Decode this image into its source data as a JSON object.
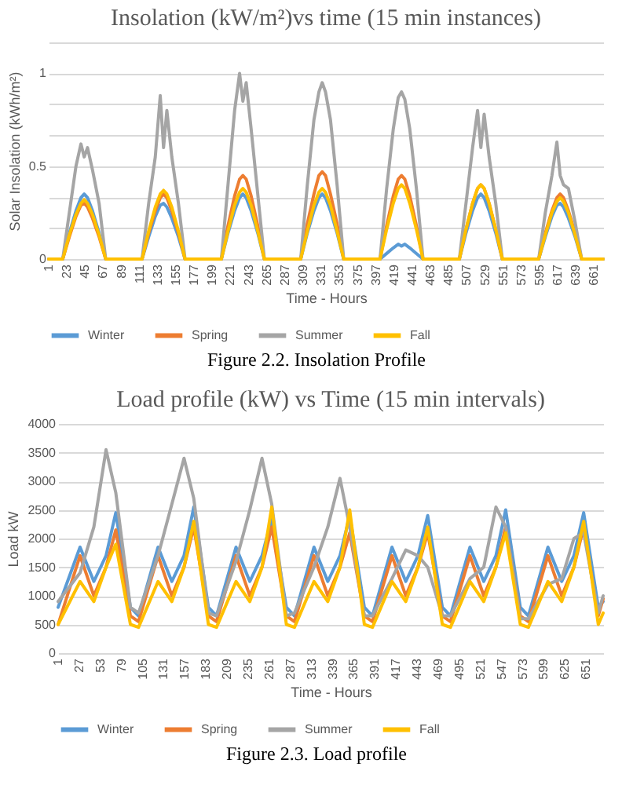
{
  "chart_data": [
    {
      "type": "line",
      "title": "Insolation (kW/m²)vs time (15 min instances)",
      "xlabel": "Time - Hours",
      "ylabel": "Solar Insolation (kWh/m²)",
      "annotations": [
        "Figure 2.2. Insolation Profile"
      ],
      "x": [
        1,
        18,
        26,
        34,
        40,
        44,
        48,
        54,
        62,
        70,
        114,
        122,
        130,
        136,
        140,
        144,
        150,
        158,
        166,
        210,
        218,
        226,
        232,
        236,
        240,
        246,
        254,
        262,
        306,
        314,
        322,
        328,
        332,
        336,
        342,
        350,
        358,
        402,
        410,
        418,
        424,
        428,
        432,
        438,
        446,
        454,
        498,
        506,
        514,
        520,
        524,
        528,
        534,
        542,
        550,
        594,
        602,
        610,
        616,
        620,
        624,
        630,
        638,
        646,
        672
      ],
      "xlim": [
        1,
        672
      ],
      "xticks": [
        1,
        23,
        45,
        67,
        89,
        111,
        133,
        155,
        177,
        199,
        221,
        243,
        265,
        287,
        309,
        331,
        353,
        375,
        397,
        419,
        441,
        463,
        485,
        507,
        529,
        551,
        573,
        595,
        617,
        639,
        661
      ],
      "ylim": [
        0,
        1.1667
      ],
      "yticks": [
        0,
        {
          "value": 0.1667,
          "label": null
        },
        {
          "value": 0.3333,
          "label": null
        },
        0.5,
        {
          "value": 0.6667,
          "label": null
        },
        {
          "value": 0.8333,
          "label": null
        },
        1,
        {
          "value": 1.1667,
          "label": null
        }
      ],
      "grid": "y",
      "legend": "bottom",
      "series": [
        {
          "name": "Winter",
          "color": "#5b9bd5",
          "values": [
            0,
            0,
            0.14,
            0.26,
            0.33,
            0.35,
            0.33,
            0.26,
            0.14,
            0,
            0,
            0.12,
            0.23,
            0.29,
            0.3,
            0.28,
            0.22,
            0.12,
            0,
            0,
            0.14,
            0.26,
            0.33,
            0.35,
            0.33,
            0.26,
            0.14,
            0,
            0,
            0.14,
            0.26,
            0.33,
            0.35,
            0.33,
            0.26,
            0.14,
            0,
            0,
            0.03,
            0.06,
            0.08,
            0.07,
            0.08,
            0.06,
            0.03,
            0,
            0,
            0.14,
            0.26,
            0.33,
            0.35,
            0.33,
            0.26,
            0.14,
            0,
            0,
            0.12,
            0.23,
            0.29,
            0.3,
            0.28,
            0.22,
            0.12,
            0,
            0
          ]
        },
        {
          "name": "Spring",
          "color": "#ed7d31",
          "values": [
            0,
            0,
            0.12,
            0.23,
            0.29,
            0.3,
            0.28,
            0.22,
            0.12,
            0,
            0,
            0.14,
            0.26,
            0.33,
            0.35,
            0.33,
            0.26,
            0.14,
            0,
            0,
            0.18,
            0.34,
            0.43,
            0.45,
            0.43,
            0.34,
            0.18,
            0,
            0,
            0.19,
            0.35,
            0.45,
            0.47,
            0.45,
            0.35,
            0.19,
            0,
            0,
            0.18,
            0.34,
            0.43,
            0.45,
            0.43,
            0.34,
            0.18,
            0,
            0,
            0.16,
            0.3,
            0.38,
            0.4,
            0.38,
            0.3,
            0.16,
            0,
            0,
            0.14,
            0.26,
            0.33,
            0.35,
            0.33,
            0.26,
            0.14,
            0,
            0
          ]
        },
        {
          "name": "Summer",
          "color": "#a5a5a5",
          "values": [
            0,
            0,
            0.25,
            0.5,
            0.62,
            0.55,
            0.6,
            0.48,
            0.3,
            0,
            0,
            0.3,
            0.55,
            0.88,
            0.6,
            0.8,
            0.55,
            0.3,
            0,
            0,
            0.4,
            0.8,
            1.0,
            0.85,
            0.95,
            0.7,
            0.35,
            0,
            0,
            0.4,
            0.75,
            0.9,
            0.95,
            0.9,
            0.75,
            0.4,
            0,
            0,
            0.38,
            0.7,
            0.87,
            0.9,
            0.86,
            0.7,
            0.38,
            0,
            0,
            0.3,
            0.6,
            0.8,
            0.6,
            0.78,
            0.55,
            0.3,
            0,
            0,
            0.25,
            0.45,
            0.63,
            0.45,
            0.4,
            0.38,
            0.2,
            0,
            0
          ]
        },
        {
          "name": "Fall",
          "color": "#ffc000",
          "values": [
            0,
            0,
            0.13,
            0.24,
            0.3,
            0.32,
            0.3,
            0.24,
            0.13,
            0,
            0,
            0.15,
            0.28,
            0.35,
            0.37,
            0.35,
            0.28,
            0.15,
            0,
            0,
            0.15,
            0.29,
            0.36,
            0.38,
            0.36,
            0.29,
            0.15,
            0,
            0,
            0.15,
            0.29,
            0.36,
            0.38,
            0.36,
            0.29,
            0.15,
            0,
            0,
            0.16,
            0.3,
            0.38,
            0.4,
            0.38,
            0.3,
            0.16,
            0,
            0,
            0.16,
            0.3,
            0.38,
            0.4,
            0.38,
            0.3,
            0.16,
            0,
            0,
            0.13,
            0.25,
            0.31,
            0.33,
            0.31,
            0.25,
            0.13,
            0,
            0
          ]
        }
      ]
    },
    {
      "type": "line",
      "title": "Load profile (kW) vs Time (15 min intervals)",
      "xlabel": "Time - Hours",
      "ylabel": "Load kW",
      "annotations": [
        "Figure 2.3. Load profile"
      ],
      "x": [
        1,
        28,
        45,
        60,
        72,
        90,
        100,
        124,
        141,
        156,
        168,
        186,
        196,
        220,
        237,
        252,
        264,
        282,
        292,
        316,
        333,
        348,
        360,
        378,
        388,
        412,
        429,
        444,
        456,
        474,
        484,
        508,
        525,
        540,
        552,
        570,
        580,
        604,
        621,
        636,
        648,
        666,
        672
      ],
      "xlim": [
        1,
        672
      ],
      "xticks": [
        1,
        27,
        53,
        79,
        105,
        131,
        157,
        183,
        209,
        235,
        261,
        287,
        313,
        339,
        365,
        391,
        417,
        443,
        469,
        495,
        521,
        547,
        573,
        599,
        625,
        651
      ],
      "ylim": [
        0,
        4000
      ],
      "yticks": [
        0,
        500,
        1000,
        1500,
        2000,
        2500,
        3000,
        3500,
        4000
      ],
      "grid": "y",
      "legend": "bottom",
      "series": [
        {
          "name": "Winter",
          "color": "#5b9bd5",
          "values": [
            800,
            1850,
            1250,
            1700,
            2450,
            800,
            650,
            1850,
            1250,
            1700,
            2550,
            800,
            650,
            1850,
            1250,
            1700,
            2350,
            800,
            650,
            1850,
            1250,
            1700,
            2400,
            800,
            650,
            1850,
            1250,
            1700,
            2400,
            800,
            650,
            1850,
            1250,
            1700,
            2500,
            800,
            650,
            1850,
            1250,
            1700,
            2450,
            800,
            900
          ]
        },
        {
          "name": "Spring",
          "color": "#ed7d31",
          "values": [
            500,
            1700,
            1000,
            1500,
            2150,
            650,
            550,
            1700,
            1000,
            1500,
            2200,
            650,
            550,
            1700,
            1000,
            1500,
            2200,
            650,
            550,
            1700,
            1000,
            1500,
            2100,
            650,
            550,
            1700,
            1000,
            1500,
            2100,
            650,
            550,
            1700,
            1000,
            1500,
            2200,
            650,
            550,
            1700,
            1000,
            1500,
            2200,
            650,
            950
          ]
        },
        {
          "name": "Summer",
          "color": "#a5a5a5",
          "values": [
            900,
            1400,
            2200,
            3550,
            2800,
            800,
            700,
            1700,
            2600,
            3400,
            2700,
            700,
            650,
            1600,
            2500,
            3400,
            2600,
            650,
            700,
            1500,
            2200,
            3050,
            2200,
            650,
            650,
            1300,
            1800,
            1700,
            1500,
            650,
            650,
            1300,
            1500,
            2550,
            2200,
            600,
            600,
            1200,
            1300,
            2000,
            2100,
            700,
            1000
          ]
        },
        {
          "name": "Fall",
          "color": "#ffc000",
          "values": [
            500,
            1250,
            900,
            1500,
            1900,
            500,
            450,
            1250,
            900,
            1500,
            2300,
            500,
            450,
            1250,
            900,
            1500,
            2550,
            500,
            450,
            1250,
            900,
            1500,
            2500,
            500,
            450,
            1250,
            900,
            1500,
            2200,
            500,
            450,
            1250,
            900,
            1500,
            2100,
            500,
            450,
            1250,
            900,
            1500,
            2300,
            500,
            700
          ]
        }
      ]
    }
  ]
}
